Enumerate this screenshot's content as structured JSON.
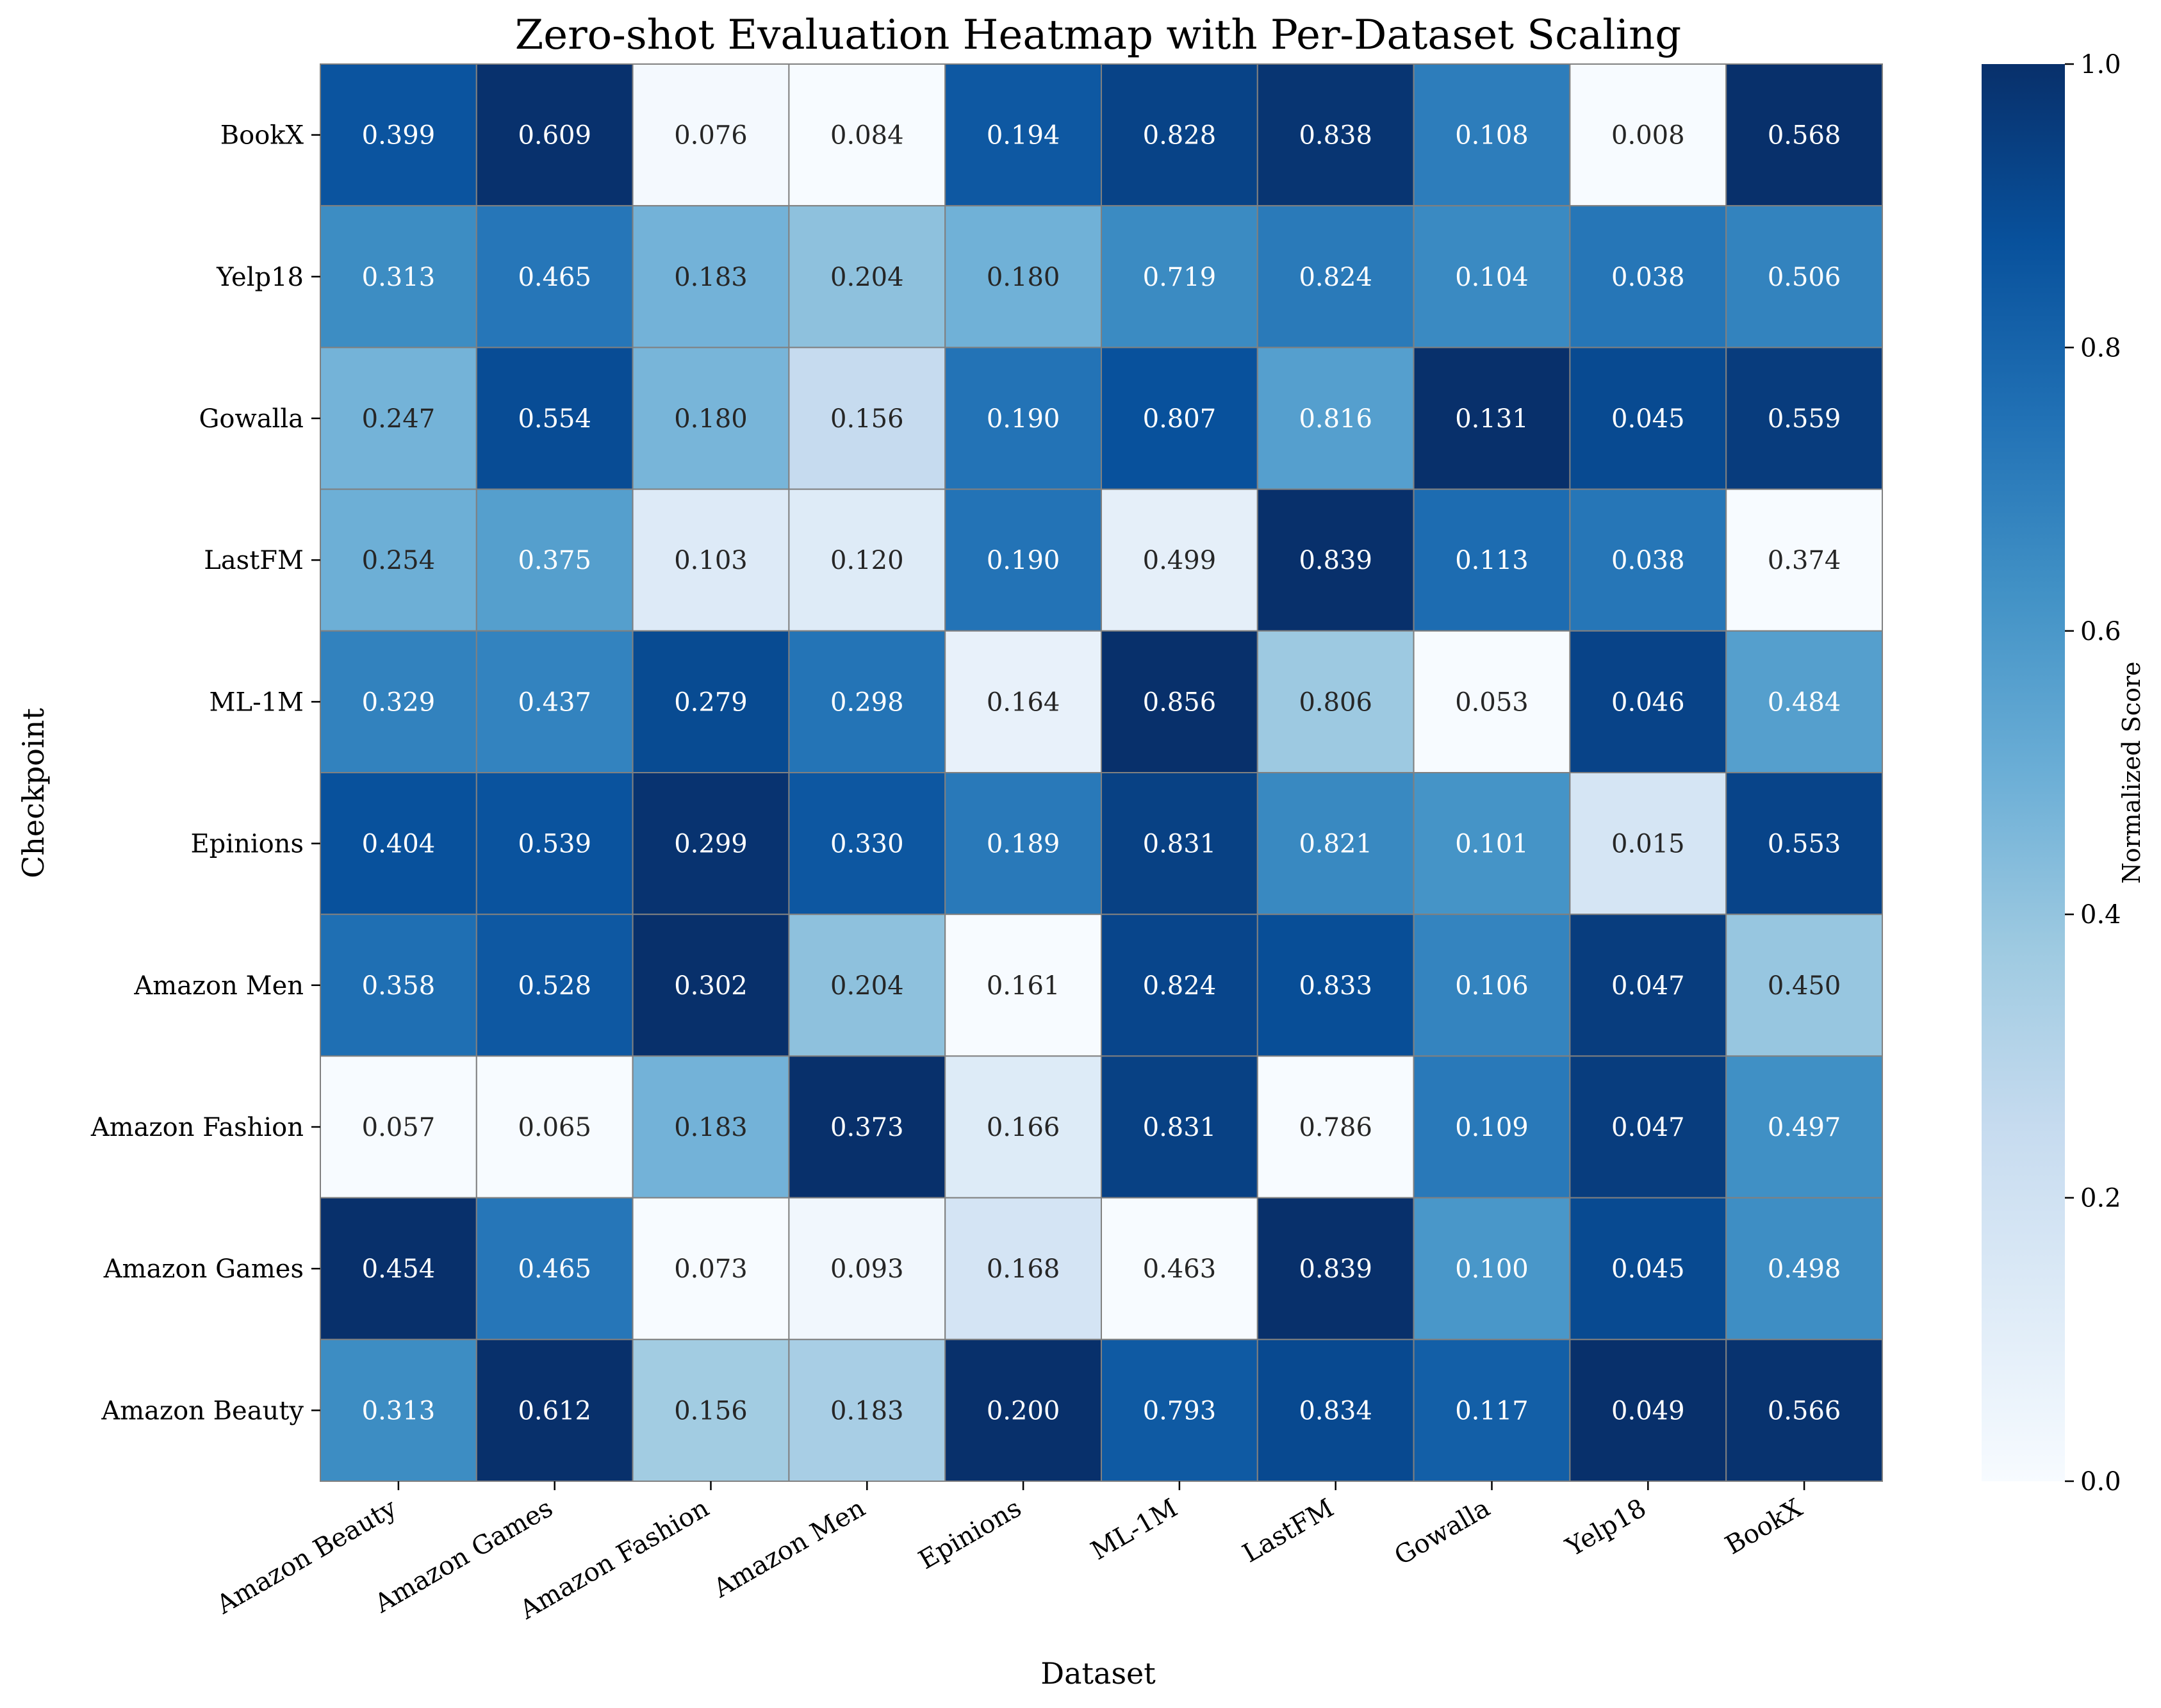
{
  "chart_data": {
    "type": "heatmap",
    "title": "Zero-shot Evaluation Heatmap with Per-Dataset Scaling",
    "xlabel": "Dataset",
    "ylabel": "Checkpoint",
    "columns": [
      "Amazon Beauty",
      "Amazon Games",
      "Amazon Fashion",
      "Amazon Men",
      "Epinions",
      "ML-1M",
      "LastFM",
      "Gowalla",
      "Yelp18",
      "BookX"
    ],
    "rows": [
      "BookX",
      "Yelp18",
      "Gowalla",
      "LastFM",
      "ML-1M",
      "Epinions",
      "Amazon Men",
      "Amazon Fashion",
      "Amazon Games",
      "Amazon Beauty"
    ],
    "values": [
      [
        0.399,
        0.609,
        0.076,
        0.084,
        0.194,
        0.828,
        0.838,
        0.108,
        0.008,
        0.568
      ],
      [
        0.313,
        0.465,
        0.183,
        0.204,
        0.18,
        0.719,
        0.824,
        0.104,
        0.038,
        0.506
      ],
      [
        0.247,
        0.554,
        0.18,
        0.156,
        0.19,
        0.807,
        0.816,
        0.131,
        0.045,
        0.559
      ],
      [
        0.254,
        0.375,
        0.103,
        0.12,
        0.19,
        0.499,
        0.839,
        0.113,
        0.038,
        0.374
      ],
      [
        0.329,
        0.437,
        0.279,
        0.298,
        0.164,
        0.856,
        0.806,
        0.053,
        0.046,
        0.484
      ],
      [
        0.404,
        0.539,
        0.299,
        0.33,
        0.189,
        0.831,
        0.821,
        0.101,
        0.015,
        0.553
      ],
      [
        0.358,
        0.528,
        0.302,
        0.204,
        0.161,
        0.824,
        0.833,
        0.106,
        0.047,
        0.45
      ],
      [
        0.057,
        0.065,
        0.183,
        0.373,
        0.166,
        0.831,
        0.786,
        0.109,
        0.047,
        0.497
      ],
      [
        0.454,
        0.465,
        0.073,
        0.093,
        0.168,
        0.463,
        0.839,
        0.1,
        0.045,
        0.498
      ],
      [
        0.313,
        0.612,
        0.156,
        0.183,
        0.2,
        0.793,
        0.834,
        0.117,
        0.049,
        0.566
      ]
    ],
    "scaling": "per-column min-max",
    "colormap": "Blues",
    "colorbar": {
      "label": "Normalized Score",
      "range": [
        0.0,
        1.0
      ],
      "ticks": [
        "0.0",
        "0.2",
        "0.4",
        "0.6",
        "0.8",
        "1.0"
      ]
    },
    "cell_border_color": "#808080"
  }
}
